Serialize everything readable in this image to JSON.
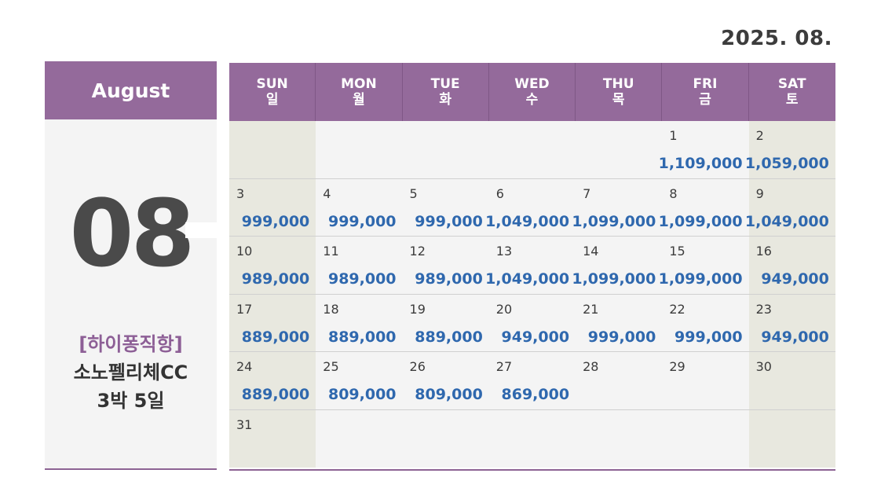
{
  "header": {
    "year_month": "2025. 08."
  },
  "left_panel": {
    "month_name": "August",
    "month_number": "08",
    "tag": "[하이퐁직항]",
    "product": "소노펠리체CC",
    "duration": "3박 5일"
  },
  "calendar": {
    "weekdays": [
      {
        "en": "SUN",
        "ko": "일"
      },
      {
        "en": "MON",
        "ko": "월"
      },
      {
        "en": "TUE",
        "ko": "화"
      },
      {
        "en": "WED",
        "ko": "수"
      },
      {
        "en": "THU",
        "ko": "목"
      },
      {
        "en": "FRI",
        "ko": "금"
      },
      {
        "en": "SAT",
        "ko": "토"
      }
    ],
    "weeks": [
      [
        {
          "day": "",
          "price": ""
        },
        {
          "day": "",
          "price": ""
        },
        {
          "day": "",
          "price": ""
        },
        {
          "day": "",
          "price": ""
        },
        {
          "day": "",
          "price": ""
        },
        {
          "day": "1",
          "price": "1,109,000"
        },
        {
          "day": "2",
          "price": "1,059,000"
        }
      ],
      [
        {
          "day": "3",
          "price": "999,000"
        },
        {
          "day": "4",
          "price": "999,000"
        },
        {
          "day": "5",
          "price": "999,000"
        },
        {
          "day": "6",
          "price": "1,049,000"
        },
        {
          "day": "7",
          "price": "1,099,000"
        },
        {
          "day": "8",
          "price": "1,099,000"
        },
        {
          "day": "9",
          "price": "1,049,000"
        }
      ],
      [
        {
          "day": "10",
          "price": "989,000"
        },
        {
          "day": "11",
          "price": "989,000"
        },
        {
          "day": "12",
          "price": "989,000"
        },
        {
          "day": "13",
          "price": "1,049,000"
        },
        {
          "day": "14",
          "price": "1,099,000"
        },
        {
          "day": "15",
          "price": "1,099,000"
        },
        {
          "day": "16",
          "price": "949,000"
        }
      ],
      [
        {
          "day": "17",
          "price": "889,000"
        },
        {
          "day": "18",
          "price": "889,000"
        },
        {
          "day": "19",
          "price": "889,000"
        },
        {
          "day": "20",
          "price": "949,000"
        },
        {
          "day": "21",
          "price": "999,000"
        },
        {
          "day": "22",
          "price": "999,000"
        },
        {
          "day": "23",
          "price": "949,000"
        }
      ],
      [
        {
          "day": "24",
          "price": "889,000"
        },
        {
          "day": "25",
          "price": "809,000"
        },
        {
          "day": "26",
          "price": "809,000"
        },
        {
          "day": "27",
          "price": "869,000"
        },
        {
          "day": "28",
          "price": ""
        },
        {
          "day": "29",
          "price": ""
        },
        {
          "day": "30",
          "price": ""
        }
      ],
      [
        {
          "day": "31",
          "price": ""
        },
        {
          "day": "",
          "price": ""
        },
        {
          "day": "",
          "price": ""
        },
        {
          "day": "",
          "price": ""
        },
        {
          "day": "",
          "price": ""
        },
        {
          "day": "",
          "price": ""
        },
        {
          "day": "",
          "price": ""
        }
      ]
    ]
  }
}
